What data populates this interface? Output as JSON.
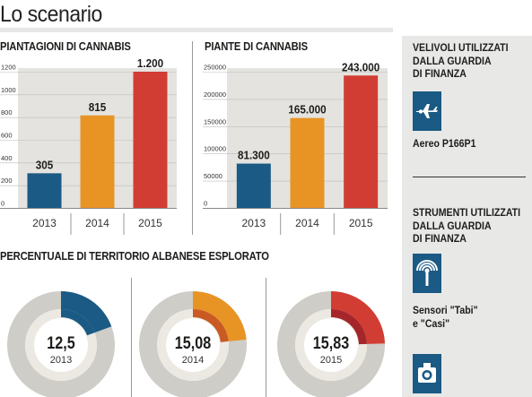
{
  "page": {
    "title": "Lo scenario"
  },
  "chart_data": [
    {
      "type": "bar",
      "title": "PIANTAGIONI DI CANNABIS",
      "categories": [
        "2013",
        "2014",
        "2015"
      ],
      "values": [
        305,
        815,
        1200
      ],
      "value_labels": [
        "305",
        "815",
        "1.200"
      ],
      "ylim": [
        0,
        1200
      ],
      "yticks": [
        "0",
        "200",
        "400",
        "600",
        "800",
        "1000",
        "1200"
      ],
      "colors": [
        "#1a5a84",
        "#e89425",
        "#d23d33"
      ],
      "grid": true
    },
    {
      "type": "bar",
      "title": "PIANTE DI CANNABIS",
      "categories": [
        "2013",
        "2014",
        "2015"
      ],
      "values": [
        81300,
        165000,
        243000
      ],
      "value_labels": [
        "81.300",
        "165.000",
        "243.000"
      ],
      "ylim": [
        0,
        250000
      ],
      "yticks": [
        "0",
        "50000",
        "100000",
        "150000",
        "200000",
        "250000"
      ],
      "colors": [
        "#1a5a84",
        "#e89425",
        "#d23d33"
      ],
      "grid": true
    },
    {
      "type": "pie",
      "title": "PERCENTUALE DI TERRITORIO ALBANESE ESPLORATO",
      "items": [
        {
          "label": "12,5",
          "year": "2013",
          "value": 12.5,
          "color": "#1a5a84",
          "inner_color": "#1a5a84"
        },
        {
          "label": "15,08",
          "year": "2014",
          "value": 15.08,
          "color": "#e89425",
          "inner_color": "#c95a24"
        },
        {
          "label": "15,83",
          "year": "2015",
          "value": 15.83,
          "color": "#d23d33",
          "inner_color": "#a4262b"
        }
      ],
      "track_color": "#cfcdc7"
    }
  ],
  "side": {
    "aircraft_heading": "VELIVOLI UTILIZZATI\nDALLA GUARDIA\nDI FINANZA",
    "aircraft_icon": "airplane-icon",
    "aircraft_label": "Aereo P166P1",
    "tools_heading": "STRUMENTI UTILIZZATI\nDALLA GUARDIA\nDI FINANZA",
    "sensor_icon": "sensor-icon",
    "sensor_label": "Sensori \"Tabi\"\ne \"Casi\"",
    "camera_icon": "camera-icon"
  }
}
